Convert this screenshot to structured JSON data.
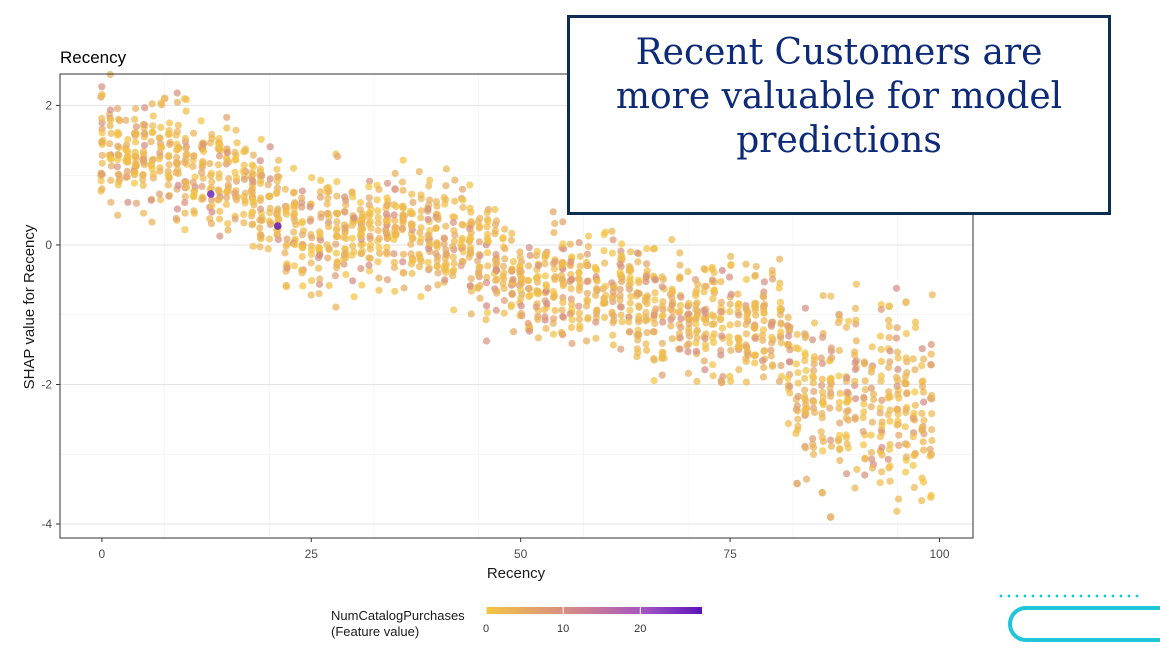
{
  "callout": {
    "text": "Recent Customers are more valuable for model predictions"
  },
  "chart_data": {
    "type": "scatter",
    "title": "Recency",
    "xlabel": "Recency",
    "ylabel": "SHAP value for Recency",
    "xlim": [
      -5,
      104
    ],
    "ylim": [
      -4.2,
      2.45
    ],
    "xticks": [
      0,
      25,
      50,
      75,
      100
    ],
    "yticks": [
      -4,
      -2,
      0,
      2
    ],
    "grid": true,
    "legend": {
      "title_line1": "NumCatalogPurchases",
      "title_line2": "(Feature value)",
      "position": "bottom",
      "ticks": [
        0,
        10,
        20
      ],
      "range": [
        0,
        28
      ],
      "colors": [
        "#f4c542",
        "#e0a070",
        "#c87a9a",
        "#9f52c4",
        "#5a14b8"
      ]
    },
    "trend": [
      [
        0,
        1.35
      ],
      [
        5,
        1.3
      ],
      [
        10,
        1.15
      ],
      [
        15,
        1.0
      ],
      [
        20,
        0.6
      ],
      [
        22,
        0.3
      ],
      [
        25,
        0.15
      ],
      [
        35,
        0.2
      ],
      [
        43,
        0.1
      ],
      [
        46,
        -0.2
      ],
      [
        50,
        -0.6
      ],
      [
        57,
        -0.6
      ],
      [
        62,
        -0.65
      ],
      [
        65,
        -0.9
      ],
      [
        75,
        -1.1
      ],
      [
        81,
        -1.15
      ],
      [
        83,
        -1.9
      ],
      [
        90,
        -2.2
      ],
      [
        99,
        -2.3
      ]
    ],
    "spread": 0.4,
    "highlights": [
      {
        "x": 13,
        "y": 0.73,
        "catalog": 26
      },
      {
        "x": 21,
        "y": 0.27,
        "catalog": 27
      },
      {
        "x": 7.5,
        "y": 2.1,
        "catalog": 3
      },
      {
        "x": 0,
        "y": 2.15,
        "catalog": 2
      },
      {
        "x": 87,
        "y": -3.9,
        "catalog": 5
      },
      {
        "x": 86,
        "y": -3.55,
        "catalog": 4
      },
      {
        "x": 83,
        "y": -3.42,
        "catalog": 6
      },
      {
        "x": 74,
        "y": -1.97,
        "catalog": 5
      },
      {
        "x": 96,
        "y": -0.82,
        "catalog": 3
      },
      {
        "x": 94,
        "y": -0.88,
        "catalog": 2
      },
      {
        "x": 88,
        "y": -1.0,
        "catalog": 6
      },
      {
        "x": 35,
        "y": 0.8,
        "catalog": 9
      },
      {
        "x": 36,
        "y": -0.4,
        "catalog": 4
      },
      {
        "x": 99,
        "y": -3.0,
        "catalog": 3
      }
    ]
  }
}
